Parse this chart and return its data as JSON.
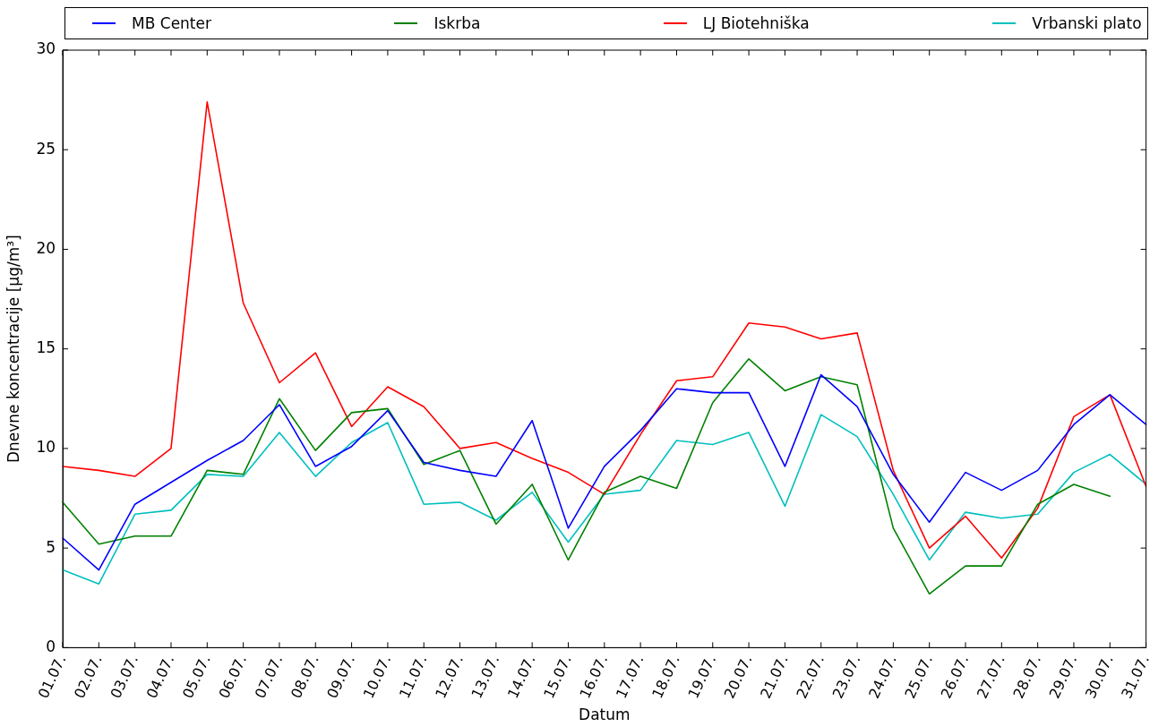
{
  "chart_data": {
    "type": "line",
    "xlabel": "Datum",
    "ylabel": "Dnevne koncentracije [μg/m³]",
    "categories": [
      "01.07.",
      "02.07.",
      "03.07.",
      "04.07.",
      "05.07.",
      "06.07.",
      "07.07.",
      "08.07.",
      "09.07.",
      "10.07.",
      "11.07.",
      "12.07.",
      "13.07.",
      "14.07.",
      "15.07.",
      "16.07.",
      "17.07.",
      "18.07.",
      "19.07.",
      "20.07.",
      "21.07.",
      "22.07.",
      "23.07.",
      "24.07.",
      "25.07.",
      "26.07.",
      "27.07.",
      "28.07.",
      "29.07.",
      "30.07.",
      "31.07."
    ],
    "series": [
      {
        "name": "MB Center",
        "color": "#0000ff",
        "values": [
          5.5,
          3.9,
          7.2,
          8.3,
          9.4,
          10.4,
          12.2,
          9.1,
          10.1,
          11.9,
          9.3,
          8.9,
          8.6,
          11.4,
          6.0,
          9.1,
          10.9,
          13.0,
          12.8,
          12.8,
          9.1,
          13.7,
          12.1,
          8.7,
          6.3,
          8.8,
          7.9,
          8.9,
          11.2,
          12.7,
          11.2
        ]
      },
      {
        "name": "Iskrba",
        "color": "#008000",
        "values": [
          7.3,
          5.2,
          5.6,
          5.6,
          8.9,
          8.7,
          12.5,
          9.9,
          11.8,
          12.0,
          9.2,
          9.9,
          6.2,
          8.2,
          4.4,
          7.8,
          8.6,
          8.0,
          12.3,
          14.5,
          12.9,
          13.6,
          13.2,
          6.0,
          2.7,
          4.1,
          4.1,
          7.2,
          8.2,
          7.6,
          null
        ]
      },
      {
        "name": "LJ Biotehniška",
        "color": "#ff0000",
        "values": [
          9.1,
          8.9,
          8.6,
          10.0,
          27.4,
          17.3,
          13.3,
          14.8,
          11.1,
          13.1,
          12.1,
          10.0,
          10.3,
          9.5,
          8.8,
          7.7,
          10.7,
          13.4,
          13.6,
          16.3,
          16.1,
          15.5,
          15.8,
          8.9,
          5.0,
          6.6,
          4.5,
          7.0,
          11.6,
          12.7,
          8.1
        ]
      },
      {
        "name": "Vrbanski plato",
        "color": "#00bfbf",
        "values": [
          3.9,
          3.2,
          6.7,
          6.9,
          8.7,
          8.6,
          10.8,
          8.6,
          10.3,
          11.3,
          7.2,
          7.3,
          6.4,
          7.8,
          5.3,
          7.7,
          7.9,
          10.4,
          10.2,
          10.8,
          7.1,
          11.7,
          10.6,
          7.7,
          4.4,
          6.8,
          6.5,
          6.7,
          8.8,
          9.7,
          8.2
        ]
      }
    ],
    "ylim": [
      0,
      30
    ],
    "yticks": [
      0,
      5,
      10,
      15,
      20,
      25,
      30
    ],
    "legend": "top",
    "line_style": "solid"
  }
}
